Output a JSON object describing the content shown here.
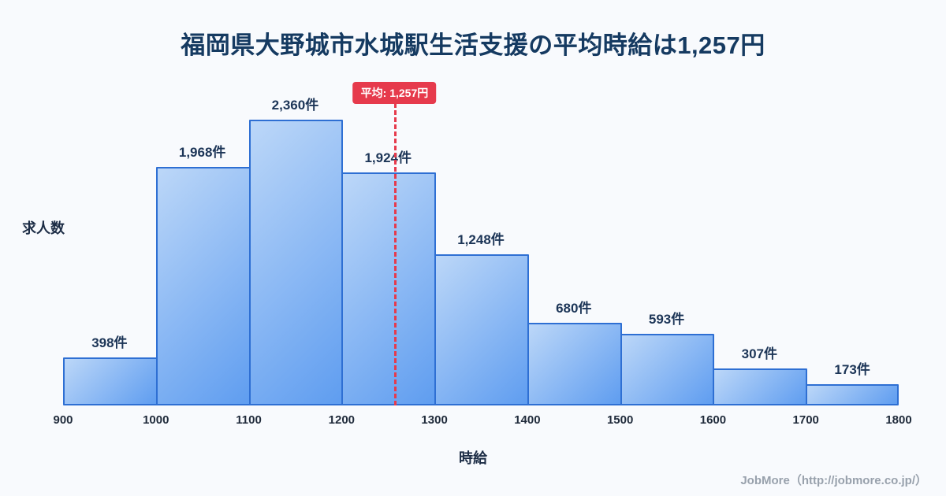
{
  "page": {
    "title": "福岡県大野城市水城駅生活支援の平均時給は1,257円"
  },
  "chart_data": {
    "type": "bar",
    "subtype": "histogram",
    "title": "福岡県大野城市水城駅生活支援の平均時給は1,257円",
    "xlabel": "時給",
    "ylabel": "求人数",
    "bin_edges": [
      900,
      1000,
      1100,
      1200,
      1300,
      1400,
      1500,
      1600,
      1700,
      1800
    ],
    "values": [
      398,
      1968,
      2360,
      1924,
      1248,
      680,
      593,
      307,
      173
    ],
    "value_labels": [
      "398件",
      "1,968件",
      "2,360件",
      "1,924件",
      "1,248件",
      "680件",
      "593件",
      "307件",
      "173件"
    ],
    "xlim": [
      900,
      1800
    ],
    "ylim": [
      0,
      2600
    ],
    "grid": false,
    "legend": false,
    "average": {
      "value": 1257,
      "label": "平均: 1,257円"
    },
    "colors": {
      "background": "#f8fafd",
      "bar_gradient_from": "#bcd7f8",
      "bar_gradient_to": "#5f9df0",
      "bar_border": "#2e6fd3",
      "average_line": "#e63a4c",
      "title_text": "#153a61"
    }
  },
  "footer": {
    "credit": "JobMore（http://jobmore.co.jp/）"
  }
}
